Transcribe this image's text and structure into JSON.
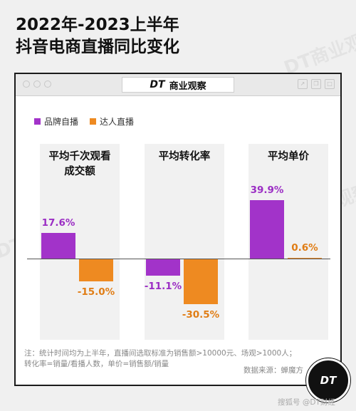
{
  "title": {
    "line1": "2022年-2023上半年",
    "line2": "抖音电商直播同比变化"
  },
  "brand": {
    "logo": "DT",
    "name": "商业观察"
  },
  "watermark": "DT商业观察",
  "legend": [
    {
      "label": "品牌自播",
      "color": "#a233c9"
    },
    {
      "label": "达人直播",
      "color": "#ee8a21"
    }
  ],
  "chart_data": {
    "type": "bar",
    "categories": [
      "平均千次观看成交额",
      "平均转化率",
      "平均单价"
    ],
    "category_lines": [
      [
        "平均千次观看",
        "成交额"
      ],
      [
        "平均转化率"
      ],
      [
        "平均单价"
      ]
    ],
    "series": [
      {
        "name": "品牌自播",
        "values": [
          17.6,
          -11.1,
          39.9
        ],
        "labels": [
          "17.6%",
          "-11.1%",
          "39.9%"
        ],
        "color": "#a233c9"
      },
      {
        "name": "达人直播",
        "values": [
          -15.0,
          -30.5,
          0.6
        ],
        "labels": [
          "-15.0%",
          "-30.5%",
          "0.6%"
        ],
        "color": "#ee8a21"
      }
    ],
    "unit": "%",
    "ylim": [
      -35,
      42
    ],
    "legend_position": "top-left",
    "grid": false
  },
  "note": {
    "line1": "注：统计时间均为上半年，直播间选取标准为销售额>10000元、场观>1000人；",
    "line2": "转化率=销量/看播人数，单价=销售额/销量"
  },
  "source": "数据来源：蝉魔方",
  "badge": "DT",
  "footer": "搜狐号 @DT财经"
}
